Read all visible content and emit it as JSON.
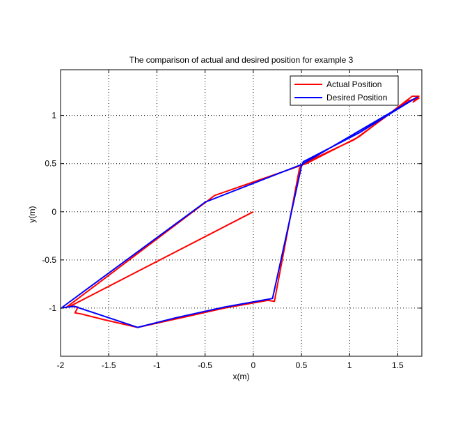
{
  "chart_data": {
    "type": "line",
    "title": "The comparison of actual and desired position for example 3",
    "xlabel": "x(m)",
    "ylabel": "y(m)",
    "xlim": [
      -2,
      1.75
    ],
    "ylim": [
      -1.5,
      1.475
    ],
    "xticks": [
      -2,
      -1.5,
      -1,
      -0.5,
      0,
      0.5,
      1,
      1.5
    ],
    "xtick_labels": [
      "-2",
      "-1.5",
      "-1",
      "-0.5",
      "0",
      "0.5",
      "1",
      "1.5"
    ],
    "yticks": [
      -1,
      -0.5,
      0,
      0.5,
      1
    ],
    "ytick_labels": [
      "-1",
      "-0.5",
      "0",
      "0.5",
      "1"
    ],
    "grid": true,
    "legend_position": "top-right",
    "series": [
      {
        "name": "Actual Position",
        "color": "#ff0000",
        "x": [
          0,
          -1.9,
          -1.82,
          -1.85,
          -1.79,
          -1.55,
          -1.2,
          -0.7,
          -0.3,
          0.15,
          0.22,
          0.48,
          0.52,
          1.05,
          1.6,
          1.72,
          1.66,
          1.72,
          1.65,
          1.1,
          0.55,
          -0.4,
          -1.95
        ],
        "y": [
          0,
          -0.98,
          -0.99,
          -1.05,
          -1.06,
          -1.12,
          -1.2,
          -1.09,
          -1.0,
          -0.92,
          -0.93,
          0.45,
          0.5,
          0.75,
          1.15,
          1.18,
          1.14,
          1.2,
          1.2,
          0.78,
          0.5,
          0.17,
          -1.0
        ]
      },
      {
        "name": "Desired Position",
        "color": "#0000ff",
        "x": [
          -2,
          -1.86,
          -1.2,
          -0.8,
          -0.3,
          0.2,
          0.5,
          0.52,
          1.1,
          1.7,
          0.5,
          -0.5,
          -1.98
        ],
        "y": [
          -1.0,
          -0.98,
          -1.2,
          -1.1,
          -0.99,
          -0.9,
          0.47,
          0.52,
          0.82,
          1.19,
          0.49,
          0.1,
          -0.99
        ]
      }
    ]
  }
}
